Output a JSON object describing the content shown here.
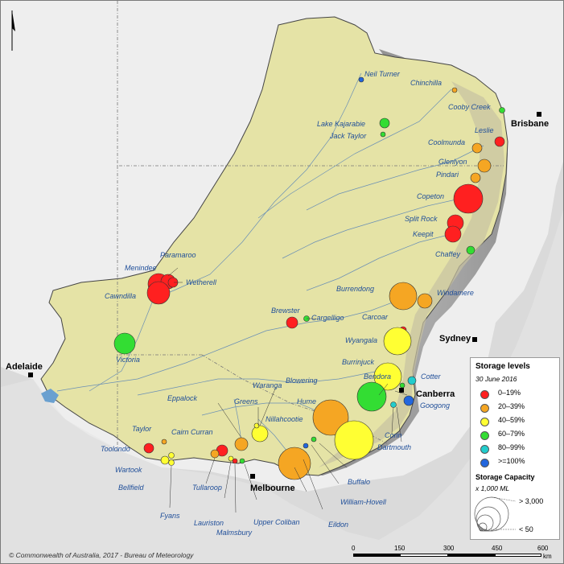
{
  "legend": {
    "title": "Storage levels",
    "date": "30 June 2016",
    "classes": [
      {
        "label": "0–19%",
        "color": "#ff2020"
      },
      {
        "label": "20–39%",
        "color": "#f5a623"
      },
      {
        "label": "40–59%",
        "color": "#ffff33"
      },
      {
        "label": "60–79%",
        "color": "#33dd33"
      },
      {
        "label": "80–99%",
        "color": "#22cccc"
      },
      {
        "label": ">=100%",
        "color": "#2266dd"
      }
    ],
    "capacity_title": "Storage Capacity",
    "capacity_units": "x 1,000 ML",
    "capacity_max": "> 3,000",
    "capacity_min": "< 50"
  },
  "cities": {
    "brisbane": "Brisbane",
    "sydney": "Sydney",
    "canberra": "Canberra",
    "melbourne": "Melbourne",
    "adelaide": "Adelaide"
  },
  "storages": {
    "neil_turner": "Neil Turner",
    "chinchilla": "Chinchilla",
    "cooby_creek": "Cooby Creek",
    "lake_kajarabie": "Lake Kajarabie",
    "jack_taylor": "Jack Taylor",
    "leslie": "Leslie",
    "coolmunda": "Coolmunda",
    "glenlyon": "Glenlyon",
    "pindari": "Pindari",
    "copeton": "Copeton",
    "split_rock": "Split Rock",
    "keepit": "Keepit",
    "chaffey": "Chaffey",
    "paramaroo": "Paramaroo",
    "menindee": "Menindee",
    "wetherell": "Wetherell",
    "cawndilla": "Cawndilla",
    "burrendong": "Burrendong",
    "windamere": "Windamere",
    "brewster": "Brewster",
    "cargelligo": "Cargelligo",
    "carcoar": "Carcoar",
    "wyangala": "Wyangala",
    "victoria": "Victoria",
    "burrinjuck": "Burrinjuck",
    "bendora": "Bendora",
    "cotter": "Cotter",
    "blowering": "Blowering",
    "googong": "Googong",
    "waranga": "Waranga",
    "greens": "Greens",
    "eppalock": "Eppalock",
    "hume": "Hume",
    "nillahcootie": "Nillahcootie",
    "corin": "Corin",
    "dartmouth": "Dartmouth",
    "cairn_curran": "Cairn Curran",
    "taylor": "Taylor",
    "toolondo": "Toolondo",
    "wartook": "Wartook",
    "bellfield": "Bellfield",
    "fyans": "Fyans",
    "tullaroop": "Tullaroop",
    "lauriston": "Lauriston",
    "malmsbury": "Malmsbury",
    "upper_coliban": "Upper Coliban",
    "eildon": "Eildon",
    "william_hovell": "William-Hovell",
    "buffalo": "Buffalo"
  },
  "footer": {
    "copyright": "© Commonwealth of Australia, 2017 - Bureau of Meteorology"
  },
  "scale": {
    "ticks": [
      "0",
      "150",
      "300",
      "450",
      "600"
    ],
    "unit": "km"
  }
}
